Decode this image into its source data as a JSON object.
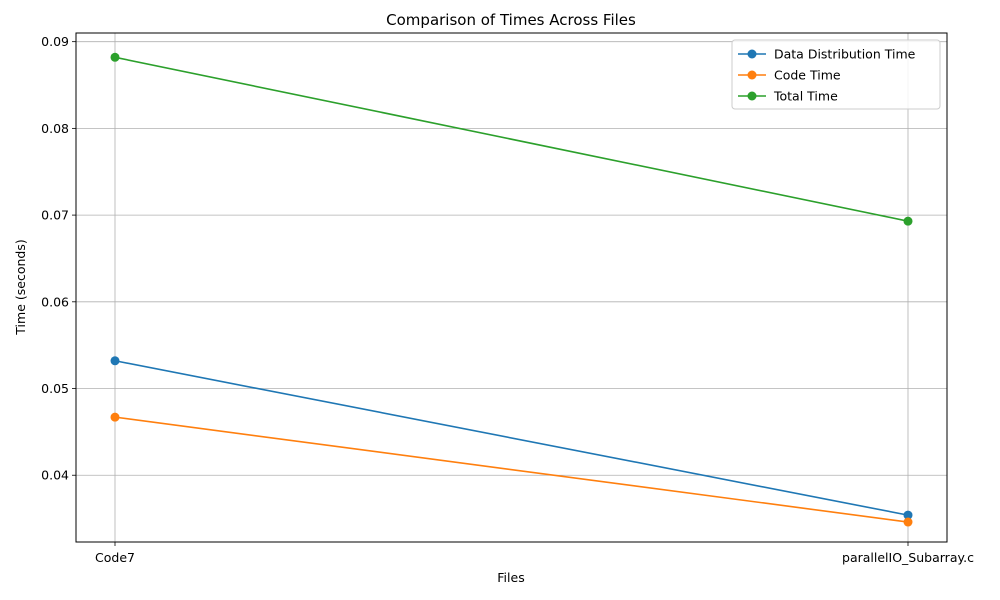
{
  "chart_data": {
    "type": "line",
    "title": "Comparison of Times Across Files",
    "xlabel": "Files",
    "ylabel": "Time (seconds)",
    "categories": [
      "Code7",
      "parallelIO_Subarray.c"
    ],
    "ylim": [
      0.0323,
      0.091
    ],
    "yticks": [
      "0.04",
      "0.05",
      "0.06",
      "0.07",
      "0.08",
      "0.09"
    ],
    "grid": true,
    "legend_position": "top-right",
    "marker": "circle",
    "series": [
      {
        "name": "Data Distribution Time",
        "color": "#1f77b4",
        "values": [
          0.0532,
          0.0354
        ]
      },
      {
        "name": "Code Time",
        "color": "#ff7f0e",
        "values": [
          0.0467,
          0.0346
        ]
      },
      {
        "name": "Total Time",
        "color": "#2ca02c",
        "values": [
          0.0882,
          0.0693
        ]
      }
    ]
  }
}
